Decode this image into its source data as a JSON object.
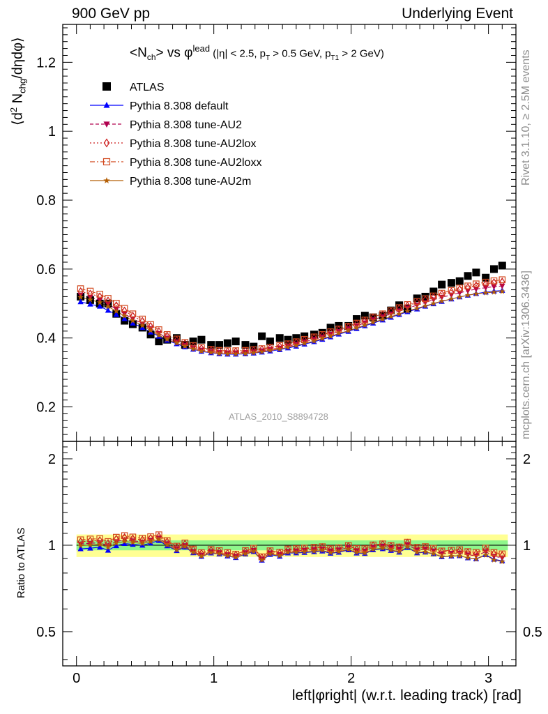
{
  "header": {
    "left": "900 GeV pp",
    "right": "Underlying Event"
  },
  "side_labels": {
    "rivet": "Rivet 3.1.10, ≥ 2.5M events",
    "mcplots": "mcplots.cern.ch [arXiv:1306.3436]"
  },
  "watermark": "ATLAS_2010_S8894728",
  "chart_data": {
    "type": "scatter",
    "title": {
      "main": "<N",
      "main_sub": "ch",
      "main_tail": "> vs φ",
      "main_sup": "lead",
      "cuts_a": " (|η| < 2.5, p",
      "cuts_sub1": "T",
      "cuts_b": " > 0.5 GeV, p",
      "cuts_sub2": "T1",
      "cuts_c": " > 2 GeV)"
    },
    "xlabel": "left|φright| (w.r.t. leading track) [rad]",
    "ylabel": {
      "a": "⟨d",
      "sup": "2",
      "b": " N",
      "sub": "chg",
      "c": "/dηdφ⟩"
    },
    "ratio_ylabel": "Ratio to ATLAS",
    "xlim": [
      -0.1,
      3.2
    ],
    "ylim": [
      0.1,
      1.31
    ],
    "ratio_ylim": [
      0.38,
      2.3
    ],
    "ratio_scale": "log",
    "x_ticks": [
      "0",
      "1",
      "2",
      "3"
    ],
    "y_ticks": [
      "0.2",
      "0.4",
      "0.6",
      "0.8",
      "1",
      "1.2"
    ],
    "ratio_ticks": [
      "0.5",
      "1",
      "2"
    ],
    "legend_placement": "top-left",
    "x": [
      0.03,
      0.1,
      0.17,
      0.23,
      0.29,
      0.35,
      0.41,
      0.48,
      0.54,
      0.6,
      0.66,
      0.73,
      0.79,
      0.85,
      0.91,
      0.98,
      1.04,
      1.1,
      1.16,
      1.23,
      1.29,
      1.35,
      1.41,
      1.48,
      1.54,
      1.6,
      1.66,
      1.73,
      1.79,
      1.85,
      1.91,
      1.98,
      2.04,
      2.1,
      2.16,
      2.23,
      2.29,
      2.35,
      2.41,
      2.48,
      2.54,
      2.6,
      2.66,
      2.73,
      2.79,
      2.85,
      2.91,
      2.98,
      3.04,
      3.1
    ],
    "series": [
      {
        "name": "ATLAS",
        "color": "#000000",
        "marker": "square",
        "values": [
          0.52,
          0.51,
          0.5,
          0.5,
          0.47,
          0.45,
          0.44,
          0.43,
          0.41,
          0.39,
          0.395,
          0.4,
          0.38,
          0.39,
          0.395,
          0.38,
          0.38,
          0.385,
          0.39,
          0.38,
          0.375,
          0.405,
          0.39,
          0.4,
          0.395,
          0.4,
          0.405,
          0.41,
          0.415,
          0.43,
          0.435,
          0.435,
          0.455,
          0.465,
          0.46,
          0.465,
          0.48,
          0.495,
          0.485,
          0.515,
          0.52,
          0.535,
          0.555,
          0.56,
          0.565,
          0.58,
          0.59,
          0.575,
          0.6,
          0.61
        ],
        "ratio_band_inner": 0.04,
        "ratio_band_outer": 0.09
      },
      {
        "name": "Pythia 8.308 default",
        "color": "#0000ff",
        "marker": "triangle-up",
        "line": "solid",
        "values": [
          0.505,
          0.498,
          0.492,
          0.48,
          0.468,
          0.456,
          0.443,
          0.43,
          0.417,
          0.405,
          0.393,
          0.383,
          0.374,
          0.367,
          0.361,
          0.357,
          0.354,
          0.353,
          0.353,
          0.354,
          0.356,
          0.359,
          0.362,
          0.366,
          0.371,
          0.376,
          0.382,
          0.389,
          0.396,
          0.403,
          0.411,
          0.419,
          0.427,
          0.435,
          0.443,
          0.452,
          0.46,
          0.468,
          0.476,
          0.484,
          0.492,
          0.499,
          0.506,
          0.513,
          0.519,
          0.524,
          0.529,
          0.533,
          0.536,
          0.538
        ]
      },
      {
        "name": "Pythia 8.308 tune-AU2",
        "color": "#b0004e",
        "marker": "triangle-down",
        "line": "dashed",
        "values": [
          0.525,
          0.518,
          0.51,
          0.498,
          0.484,
          0.47,
          0.456,
          0.441,
          0.427,
          0.413,
          0.4,
          0.389,
          0.379,
          0.371,
          0.365,
          0.361,
          0.358,
          0.357,
          0.357,
          0.358,
          0.36,
          0.363,
          0.367,
          0.371,
          0.376,
          0.382,
          0.389,
          0.396,
          0.403,
          0.411,
          0.419,
          0.427,
          0.435,
          0.444,
          0.453,
          0.462,
          0.47,
          0.479,
          0.487,
          0.495,
          0.503,
          0.511,
          0.518,
          0.525,
          0.531,
          0.537,
          0.542,
          0.546,
          0.549,
          0.551
        ]
      },
      {
        "name": "Pythia 8.308 tune-AU2lox",
        "color": "#cc1a1a",
        "marker": "diamond-open",
        "line": "dotted",
        "values": [
          0.535,
          0.528,
          0.52,
          0.508,
          0.494,
          0.479,
          0.464,
          0.449,
          0.434,
          0.419,
          0.406,
          0.394,
          0.384,
          0.376,
          0.37,
          0.365,
          0.362,
          0.361,
          0.361,
          0.362,
          0.364,
          0.367,
          0.371,
          0.376,
          0.381,
          0.387,
          0.394,
          0.401,
          0.408,
          0.416,
          0.424,
          0.432,
          0.441,
          0.45,
          0.459,
          0.468,
          0.477,
          0.486,
          0.494,
          0.503,
          0.511,
          0.519,
          0.527,
          0.534,
          0.541,
          0.547,
          0.552,
          0.557,
          0.561,
          0.563
        ]
      },
      {
        "name": "Pythia 8.308 tune-AU2loxx",
        "color": "#d2491e",
        "marker": "square-open",
        "line": "dash-dot",
        "values": [
          0.543,
          0.536,
          0.527,
          0.515,
          0.501,
          0.486,
          0.47,
          0.455,
          0.439,
          0.424,
          0.41,
          0.397,
          0.387,
          0.378,
          0.372,
          0.367,
          0.364,
          0.363,
          0.363,
          0.364,
          0.366,
          0.369,
          0.373,
          0.378,
          0.383,
          0.389,
          0.396,
          0.403,
          0.41,
          0.418,
          0.426,
          0.434,
          0.443,
          0.452,
          0.461,
          0.47,
          0.479,
          0.488,
          0.497,
          0.506,
          0.514,
          0.522,
          0.53,
          0.538,
          0.545,
          0.551,
          0.557,
          0.562,
          0.566,
          0.569
        ]
      },
      {
        "name": "Pythia 8.308 tune-AU2m",
        "color": "#b45f06",
        "marker": "star",
        "line": "solid",
        "values": [
          0.518,
          0.511,
          0.503,
          0.491,
          0.478,
          0.464,
          0.45,
          0.436,
          0.422,
          0.408,
          0.396,
          0.385,
          0.376,
          0.368,
          0.362,
          0.358,
          0.355,
          0.354,
          0.354,
          0.355,
          0.357,
          0.36,
          0.364,
          0.368,
          0.373,
          0.378,
          0.384,
          0.391,
          0.398,
          0.405,
          0.413,
          0.421,
          0.429,
          0.437,
          0.445,
          0.454,
          0.462,
          0.47,
          0.478,
          0.486,
          0.493,
          0.5,
          0.507,
          0.513,
          0.519,
          0.524,
          0.528,
          0.531,
          0.533,
          0.535
        ]
      }
    ]
  }
}
